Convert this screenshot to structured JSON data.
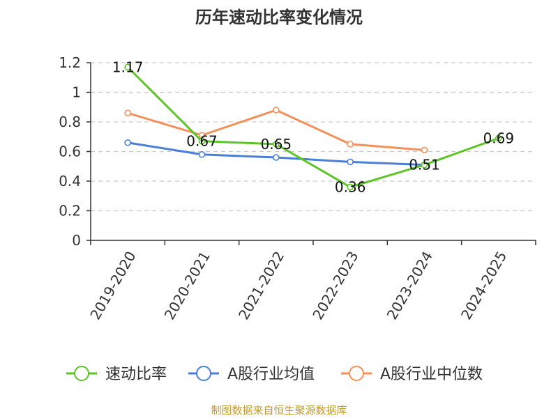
{
  "chart_data": {
    "type": "line",
    "title": "历年速动比率变化情况",
    "categories": [
      "2019-2020",
      "2020-2021",
      "2021-2022",
      "2022-2023",
      "2023-2024",
      "2024-2025"
    ],
    "series": [
      {
        "name": "速动比率",
        "color": "#5cc425",
        "values": [
          1.17,
          0.67,
          0.65,
          0.36,
          0.51,
          0.69
        ],
        "labels": [
          "1.17",
          "0.67",
          "0.65",
          "0.36",
          "0.51",
          "0.69"
        ]
      },
      {
        "name": "A股行业均值",
        "color": "#4a7fd8",
        "values": [
          0.66,
          0.58,
          0.56,
          0.53,
          0.51,
          null
        ]
      },
      {
        "name": "A股行业中位数",
        "color": "#f3905a",
        "values": [
          0.86,
          0.71,
          0.88,
          0.65,
          0.61,
          null
        ]
      }
    ],
    "ylim": [
      0,
      1.2
    ],
    "yticks": [
      "0",
      "0.2",
      "0.4",
      "0.6",
      "0.8",
      "1",
      "1.2"
    ],
    "grid": true,
    "legend_position": "bottom"
  },
  "source_text": "制图数据来自恒生聚源数据库"
}
